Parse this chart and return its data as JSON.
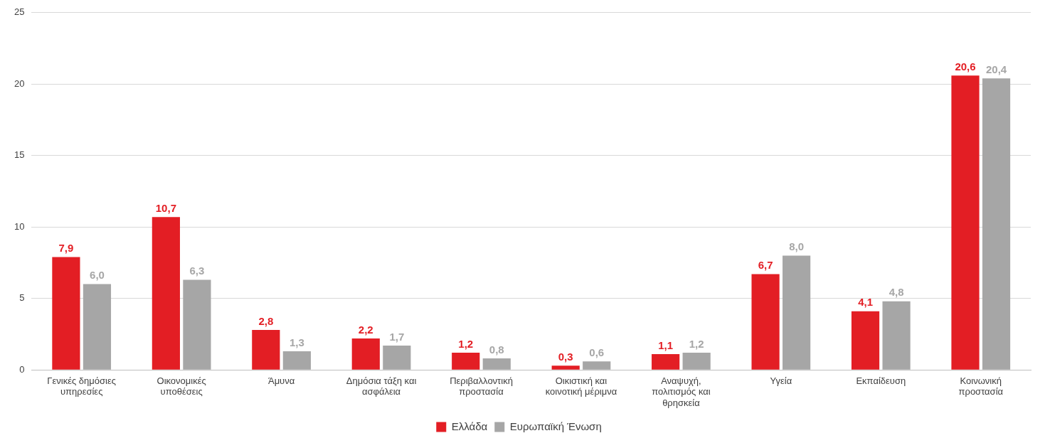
{
  "chart_data": {
    "type": "bar",
    "categories": [
      "Γενικές δημόσιες υπηρεσίες",
      "Οικονομικές υποθέσεις",
      "Άμυνα",
      "Δημόσια τάξη και ασφάλεια",
      "Περιβαλλοντική προστασία",
      "Οικιστική και κοινοτική μέριμνα",
      "Αναψυχή, πολιτισμός και θρησκεία",
      "Υγεία",
      "Εκπαίδευση",
      "Κοινωνική προστασία"
    ],
    "series": [
      {
        "name": "Ελλάδα",
        "color": "#e31e24",
        "values": [
          7.9,
          10.7,
          2.8,
          2.2,
          1.2,
          0.3,
          1.1,
          6.7,
          4.1,
          20.6
        ],
        "value_labels": [
          "7,9",
          "10,7",
          "2,8",
          "2,2",
          "1,2",
          "0,3",
          "1,1",
          "6,7",
          "4,1",
          "20,6"
        ]
      },
      {
        "name": "Ευρωπαϊκή Ένωση",
        "color": "#a6a6a6",
        "values": [
          6.0,
          6.3,
          1.3,
          1.7,
          0.8,
          0.6,
          1.2,
          8.0,
          4.8,
          20.4
        ],
        "value_labels": [
          "6,0",
          "6,3",
          "1,3",
          "1,7",
          "0,8",
          "0,6",
          "1,2",
          "8,0",
          "4,8",
          "20,4"
        ]
      }
    ],
    "ylim": [
      0,
      25
    ],
    "yticks": [
      0,
      5,
      10,
      15,
      20,
      25
    ],
    "grid": "y",
    "legend": "bottom"
  }
}
